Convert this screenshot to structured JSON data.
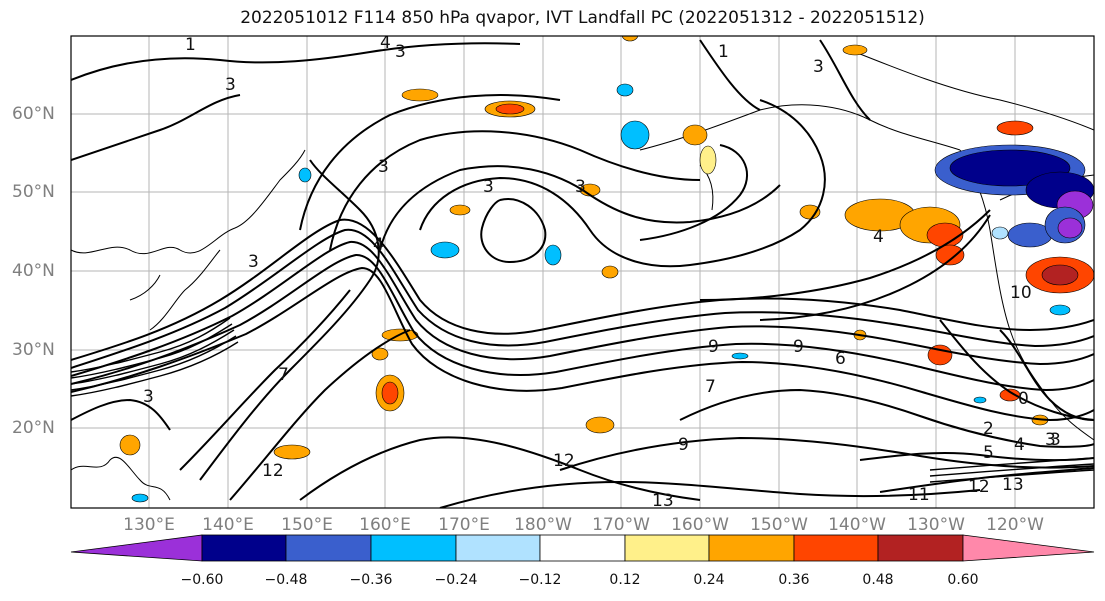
{
  "title": "2022051012 F114 850 hPa qvapor, IVT Landfall PC (2022051312 - 2022051512)",
  "map": {
    "lat_labels": [
      "60°N",
      "50°N",
      "40°N",
      "30°N",
      "20°N"
    ],
    "lon_labels": [
      "130°E",
      "140°E",
      "150°E",
      "160°E",
      "170°E",
      "180°W",
      "170°W",
      "160°W",
      "150°W",
      "140°W",
      "130°W",
      "120°W"
    ],
    "contour_labels": [
      "1",
      "4",
      "3",
      "3",
      "3",
      "3",
      "1",
      "3",
      "3",
      "3",
      "4",
      "4",
      "7",
      "9",
      "9",
      "6",
      "7",
      "9",
      "12",
      "13",
      "11",
      "12",
      "13",
      "3",
      "2",
      "5",
      "4",
      "3",
      "0",
      "12",
      "10",
      "3"
    ]
  },
  "colorbar": {
    "ticks": [
      "−0.60",
      "−0.48",
      "−0.36",
      "−0.24",
      "−0.12",
      "0.12",
      "0.24",
      "0.36",
      "0.48",
      "0.60"
    ],
    "colors": [
      "#9b30d9",
      "#00008b",
      "#3a5fcd",
      "#00bfff",
      "#b0e2ff",
      "#ffffff",
      "#fff08a",
      "#ffa500",
      "#ff4500",
      "#b22222",
      "#ff88aa"
    ]
  }
}
